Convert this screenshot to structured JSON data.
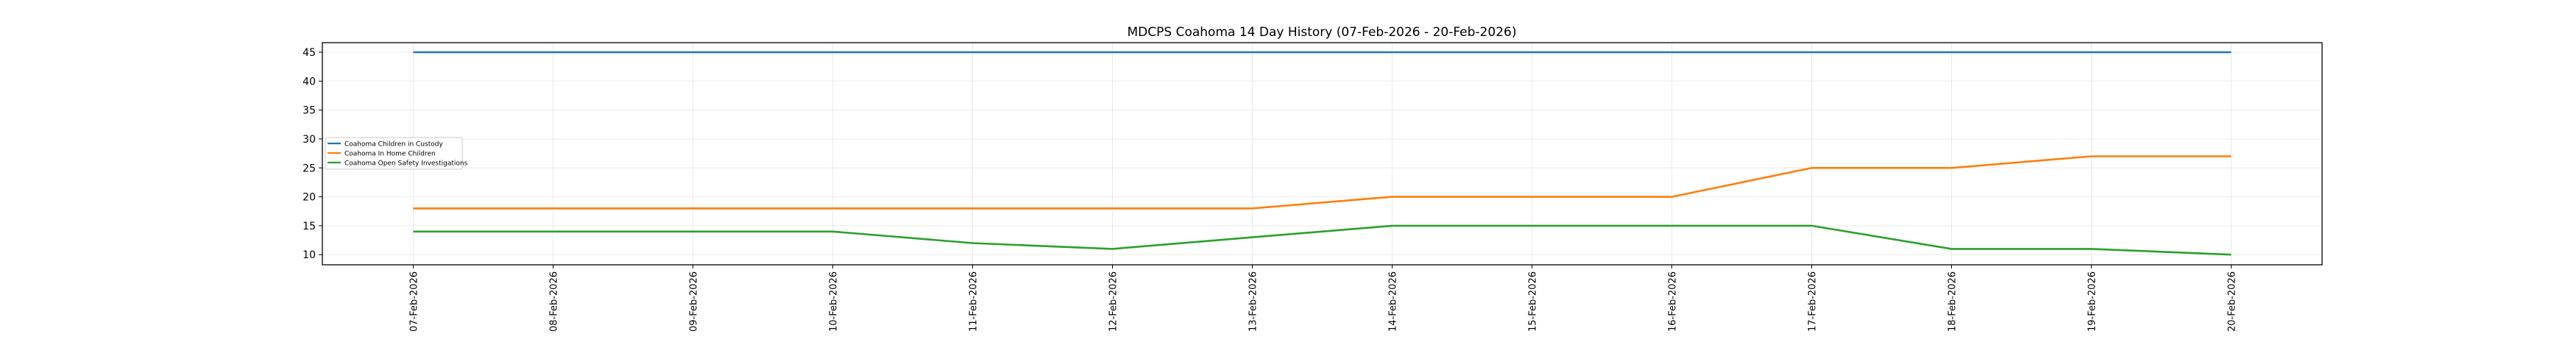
{
  "chart_data": {
    "type": "line",
    "title": "MDCPS Coahoma 14 Day History (07-Feb-2026 - 20-Feb-2026)",
    "xlabel": "",
    "ylabel": "",
    "categories": [
      "07-Feb-2026",
      "08-Feb-2026",
      "09-Feb-2026",
      "10-Feb-2026",
      "11-Feb-2026",
      "12-Feb-2026",
      "13-Feb-2026",
      "14-Feb-2026",
      "15-Feb-2026",
      "16-Feb-2026",
      "17-Feb-2026",
      "18-Feb-2026",
      "19-Feb-2026",
      "20-Feb-2026"
    ],
    "ylim": [
      8.25,
      46.65
    ],
    "yticks": [
      10,
      15,
      20,
      25,
      30,
      35,
      40,
      45
    ],
    "grid": true,
    "legend_position": "center-left",
    "series": [
      {
        "name": "Coahoma Children in Custody",
        "color": "#1f77b4",
        "values": [
          45,
          45,
          45,
          45,
          45,
          45,
          45,
          45,
          45,
          45,
          45,
          45,
          45,
          45
        ]
      },
      {
        "name": "Coahoma In Home Children",
        "color": "#ff7f0e",
        "values": [
          18,
          18,
          18,
          18,
          18,
          18,
          18,
          20,
          20,
          20,
          25,
          25,
          27,
          27
        ]
      },
      {
        "name": "Coahoma Open Safety Investigations",
        "color": "#2ca02c",
        "values": [
          14,
          14,
          14,
          14,
          12,
          11,
          13,
          15,
          15,
          15,
          15,
          11,
          11,
          10
        ]
      }
    ]
  }
}
